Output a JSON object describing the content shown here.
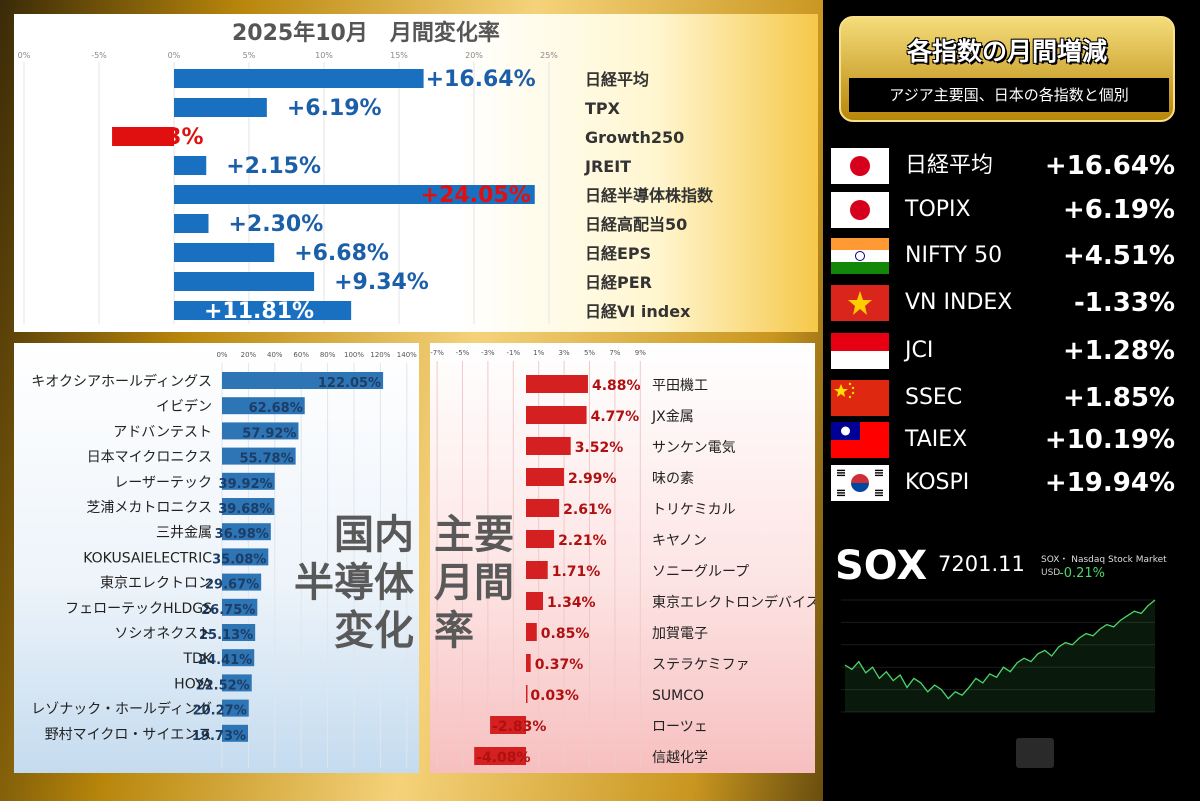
{
  "chart_data": [
    {
      "type": "bar",
      "title": "2025年10月　月間変化率",
      "orientation": "horizontal",
      "xlim": [
        -10,
        25
      ],
      "ticks": [
        "0%",
        "-5%",
        "0%",
        "5%",
        "10%",
        "15%",
        "20%",
        "25%"
      ],
      "categories": [
        "日経平均",
        "TPX",
        "Growth250",
        "JREIT",
        "日経半導体株指数",
        "日経高配当50",
        "日経EPS",
        "日経PER",
        "日経VI index"
      ],
      "values": [
        16.64,
        6.19,
        -4.13,
        2.15,
        24.05,
        2.3,
        6.68,
        9.34,
        11.81
      ],
      "value_labels": [
        "+16.64%",
        "+6.19%",
        "-4.13%",
        "+2.15%",
        "+24.05%",
        "+2.30%",
        "+6.68%",
        "+9.34%",
        "+11.81%"
      ],
      "bar_color": "#1a70c0",
      "negative_color": "#e01010"
    },
    {
      "type": "bar",
      "title": "国内半導体変化",
      "title_lines": [
        "国内",
        "半導体",
        "変化"
      ],
      "orientation": "horizontal",
      "xlim": [
        0,
        140
      ],
      "ticks": [
        "0%",
        "20%",
        "40%",
        "60%",
        "80%",
        "100%",
        "120%",
        "140%"
      ],
      "categories": [
        "キオクシアホールディングス",
        "イビデン",
        "アドバンテスト",
        "日本マイクロニクス",
        "レーザーテック",
        "芝浦メカトロニクス",
        "三井金属",
        "KOKUSAIELECTRIC",
        "東京エレクトロン",
        "フェローテックHLDGS",
        "ソシオネクスト",
        "TDK",
        "HOYA",
        "レゾナック・ホールディング",
        "野村マイクロ・サイエンス"
      ],
      "values": [
        122.05,
        62.68,
        57.92,
        55.78,
        39.92,
        39.68,
        36.98,
        35.08,
        29.67,
        26.75,
        25.13,
        24.41,
        22.52,
        20.27,
        19.73
      ],
      "value_labels": [
        "122.05%",
        "62.68%",
        "57.92%",
        "55.78%",
        "39.92%",
        "39.68%",
        "36.98%",
        "35.08%",
        "29.67%",
        "26.75%",
        "25.13%",
        "24.41%",
        "22.52%",
        "20.27%",
        "19.73%"
      ],
      "bar_color": "#2e75b6"
    },
    {
      "type": "bar",
      "title": "主要月間率",
      "title_lines": [
        "主要",
        "月間",
        "率"
      ],
      "orientation": "horizontal",
      "xlim": [
        -7,
        9
      ],
      "ticks": [
        "-7%",
        "-5%",
        "-3%",
        "-1%",
        "1%",
        "3%",
        "5%",
        "7%",
        "9%"
      ],
      "categories": [
        "平田機工",
        "JX金属",
        "サンケン電気",
        "味の素",
        "トリケミカル",
        "キヤノン",
        "ソニーグループ",
        "東京エレクトロンデバイス",
        "加賀電子",
        "ステラケミファ",
        "SUMCO",
        "ローツェ",
        "信越化学"
      ],
      "values": [
        4.88,
        4.77,
        3.52,
        2.99,
        2.61,
        2.21,
        1.71,
        1.34,
        0.85,
        0.37,
        0.03,
        -2.83,
        -4.08
      ],
      "value_labels": [
        "4.88%",
        "4.77%",
        "3.52%",
        "2.99%",
        "2.61%",
        "2.21%",
        "1.71%",
        "1.34%",
        "0.85%",
        "0.37%",
        "0.03%",
        "-2.83%",
        "-4.08%"
      ],
      "bar_color": "#d42020"
    },
    {
      "type": "line",
      "title": "SOX",
      "series": [
        {
          "name": "SOX",
          "values": [
            0.42,
            0.38,
            0.45,
            0.35,
            0.4,
            0.3,
            0.36,
            0.28,
            0.33,
            0.22,
            0.3,
            0.26,
            0.18,
            0.24,
            0.2,
            0.12,
            0.18,
            0.15,
            0.22,
            0.3,
            0.26,
            0.34,
            0.31,
            0.4,
            0.36,
            0.44,
            0.48,
            0.45,
            0.52,
            0.55,
            0.5,
            0.58,
            0.62,
            0.6,
            0.66,
            0.7,
            0.68,
            0.74,
            0.78,
            0.76,
            0.82,
            0.86,
            0.9,
            0.88,
            0.95,
            1.0
          ]
        }
      ],
      "color": "#4cd66a"
    }
  ],
  "right_panel": {
    "title": "各指数の月間増減",
    "subtitle": "アジア主要国、日本の各指数と個別",
    "indices": [
      {
        "flag": "japan",
        "name": "日経平均",
        "value": "+16.64%"
      },
      {
        "flag": "japan",
        "name": "TOPIX",
        "value": "+6.19%"
      },
      {
        "flag": "india",
        "name": "NIFTY 50",
        "value": "+4.51%"
      },
      {
        "flag": "vietnam",
        "name": "VN INDEX",
        "value": "-1.33%"
      },
      {
        "flag": "indonesia",
        "name": "JCI",
        "value": "+1.28%"
      },
      {
        "flag": "china",
        "name": "SSEC",
        "value": "+1.85%"
      },
      {
        "flag": "taiwan",
        "name": "TAIEX",
        "value": "+10.19%"
      },
      {
        "flag": "korea",
        "name": "KOSPI",
        "value": "+19.94%"
      }
    ],
    "sox": {
      "label": "SOX",
      "value": "7201.11",
      "source": "SOX・ Nasdaq Stock Market",
      "currency": "USD",
      "change": "-0.21%"
    }
  }
}
